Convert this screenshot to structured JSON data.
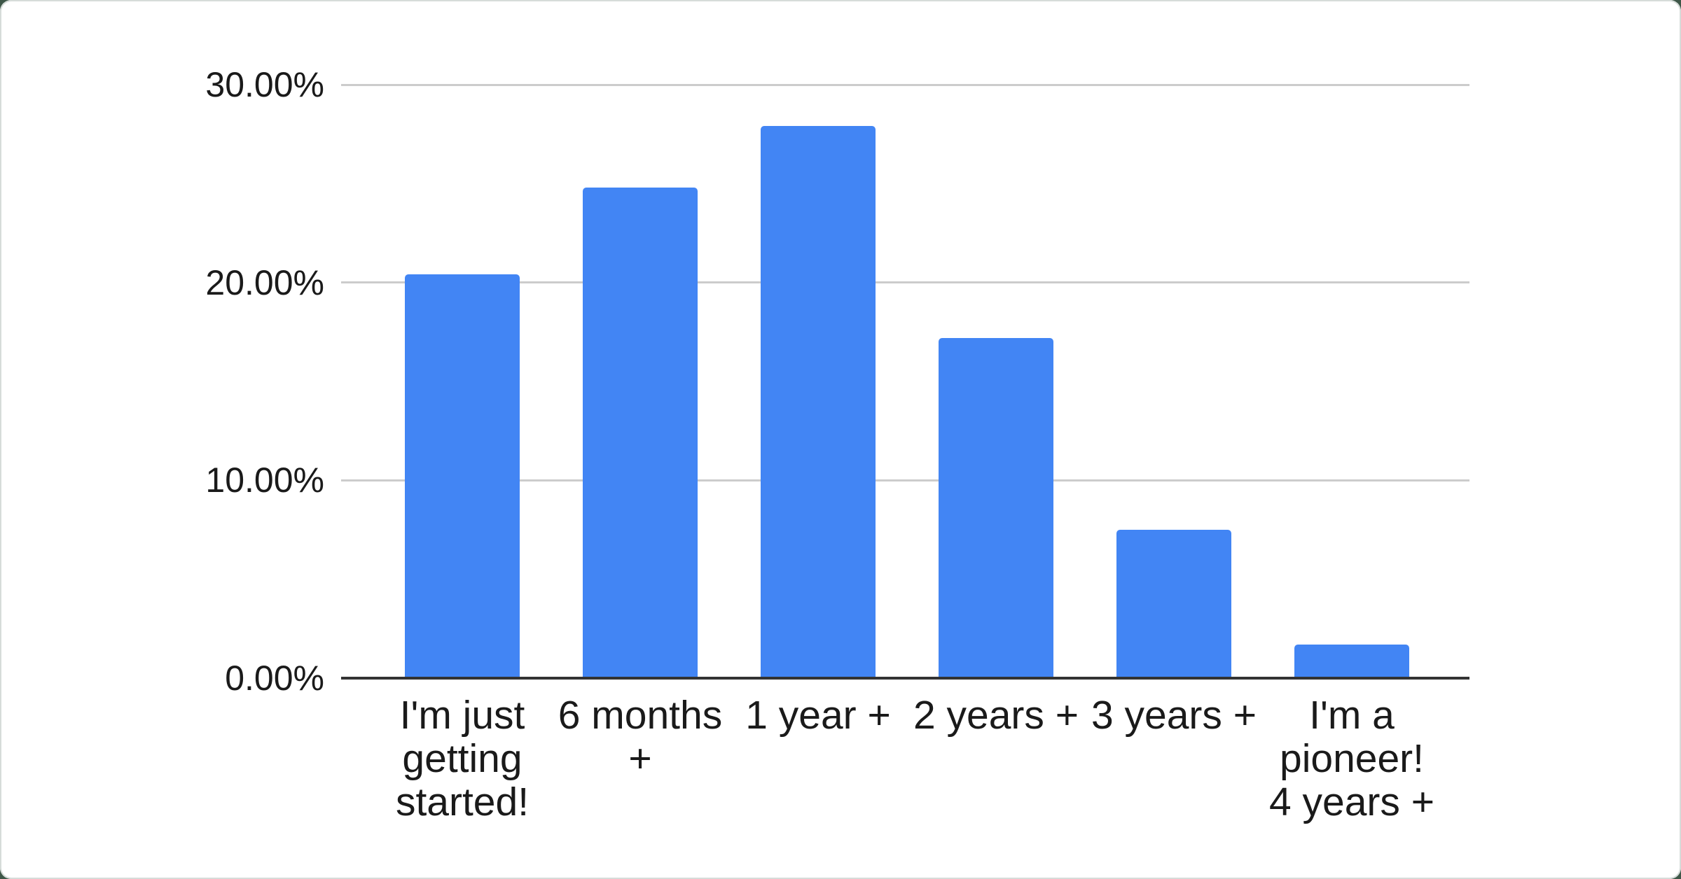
{
  "page": {
    "background_color": "#3e5748",
    "card_background": "#ffffff",
    "card_border_color": "#d6dcd9"
  },
  "chart_data": {
    "type": "bar",
    "title": "",
    "xlabel": "",
    "ylabel": "",
    "categories": [
      "I'm just getting started!",
      "6 months +",
      "1 year +",
      "2 years +",
      "3 years +",
      "I'm a pioneer! 4 years +"
    ],
    "values": [
      20.4,
      24.8,
      27.9,
      17.2,
      7.5,
      1.7
    ],
    "value_unit": "%",
    "ylim": [
      0,
      30
    ],
    "yticks": [
      {
        "label": "30.00%",
        "value": 30
      },
      {
        "label": "20.00%",
        "value": 20
      },
      {
        "label": "10.00%",
        "value": 10
      },
      {
        "label": "0.00%",
        "value": 0
      }
    ],
    "grid": true,
    "legend_position": "none",
    "bar_color": "#4285f4",
    "gridline_color": "#cccccc",
    "axis_line_color": "#333333",
    "tick_label_color": "#1a1a1a"
  }
}
